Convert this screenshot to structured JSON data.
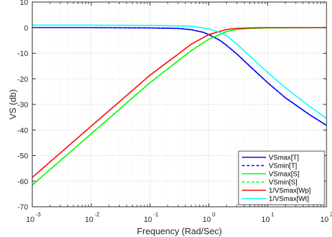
{
  "chart_data": {
    "type": "line",
    "title": "",
    "xlabel": "Frequency (Rad/Sec)",
    "ylabel": "VS (db)",
    "xscale": "log",
    "xlim": [
      0.001,
      100
    ],
    "ylim": [
      -70,
      10
    ],
    "grid": true,
    "minor_grid": true,
    "legend_position": "bottom-right",
    "x_ticks": [
      {
        "value": 0.001,
        "base": "10",
        "exp": "-3"
      },
      {
        "value": 0.01,
        "base": "10",
        "exp": "-2"
      },
      {
        "value": 0.1,
        "base": "10",
        "exp": "-1"
      },
      {
        "value": 1,
        "base": "10",
        "exp": "0"
      },
      {
        "value": 10,
        "base": "10",
        "exp": "1"
      },
      {
        "value": 100,
        "base": "10",
        "exp": "2"
      }
    ],
    "y_ticks": [
      {
        "value": 10,
        "label": "10"
      },
      {
        "value": 0,
        "label": "0"
      },
      {
        "value": -10,
        "label": "-10"
      },
      {
        "value": -20,
        "label": "-20"
      },
      {
        "value": -30,
        "label": "-30"
      },
      {
        "value": -40,
        "label": "-40"
      },
      {
        "value": -50,
        "label": "-50"
      },
      {
        "value": -60,
        "label": "-60"
      },
      {
        "value": -70,
        "label": "-70"
      }
    ],
    "series": [
      {
        "name": "VSmax[T]",
        "color": "#0000ff",
        "style": "solid",
        "x": [
          0.001,
          0.01,
          0.1,
          0.3,
          0.5,
          0.8,
          1,
          1.5,
          2,
          3,
          5,
          10,
          20,
          50,
          100
        ],
        "y": [
          0,
          0,
          -0.1,
          -0.3,
          -0.8,
          -1.8,
          -2.7,
          -4.8,
          -6.9,
          -10.3,
          -15.1,
          -21.5,
          -27.4,
          -33.8,
          -38.2
        ]
      },
      {
        "name": "VSmin[T]",
        "color": "#0000ff",
        "style": "dashed",
        "x": [
          0.001,
          0.01,
          0.1,
          0.3,
          0.5,
          0.8,
          1,
          1.5,
          2,
          3,
          5,
          10,
          20,
          50,
          100
        ],
        "y": [
          0,
          0,
          -0.1,
          -0.3,
          -0.8,
          -1.8,
          -2.7,
          -4.8,
          -6.9,
          -10.3,
          -15.1,
          -21.5,
          -27.4,
          -33.8,
          -38.2
        ]
      },
      {
        "name": "VSmax[S]",
        "color": "#00ff00",
        "style": "solid",
        "x": [
          0.001,
          0.01,
          0.1,
          0.5,
          1,
          2,
          3,
          5,
          10,
          100
        ],
        "y": [
          -61.5,
          -41.5,
          -21.5,
          -9.0,
          -4.5,
          -1.5,
          -0.7,
          -0.3,
          -0.1,
          0
        ]
      },
      {
        "name": "VSmin[S]",
        "color": "#00ff00",
        "style": "dashed",
        "x": [
          0.001,
          0.01,
          0.1,
          0.5,
          1,
          2,
          3,
          5,
          10,
          100
        ],
        "y": [
          -61.5,
          -41.5,
          -21.5,
          -9.0,
          -4.5,
          -1.5,
          -0.7,
          -0.3,
          -0.1,
          0
        ]
      },
      {
        "name": "1/VSmax[Wp]",
        "color": "#ff0000",
        "style": "solid",
        "x": [
          0.001,
          0.01,
          0.1,
          0.5,
          1,
          2,
          3,
          5,
          10,
          100
        ],
        "y": [
          -58.5,
          -38.5,
          -18.6,
          -6.5,
          -2.7,
          -0.7,
          -0.3,
          -0.1,
          0,
          0
        ]
      },
      {
        "name": "1/VSmax[Wt]",
        "color": "#00ffff",
        "style": "solid",
        "x": [
          0.001,
          0.01,
          0.1,
          0.5,
          1,
          1.5,
          2,
          3,
          5,
          10,
          20,
          50,
          100
        ],
        "y": [
          1,
          1,
          0.9,
          0.6,
          -0.5,
          -1.8,
          -3.2,
          -6.4,
          -11.2,
          -17.5,
          -23.5,
          -30.5,
          -35.5
        ]
      }
    ]
  }
}
